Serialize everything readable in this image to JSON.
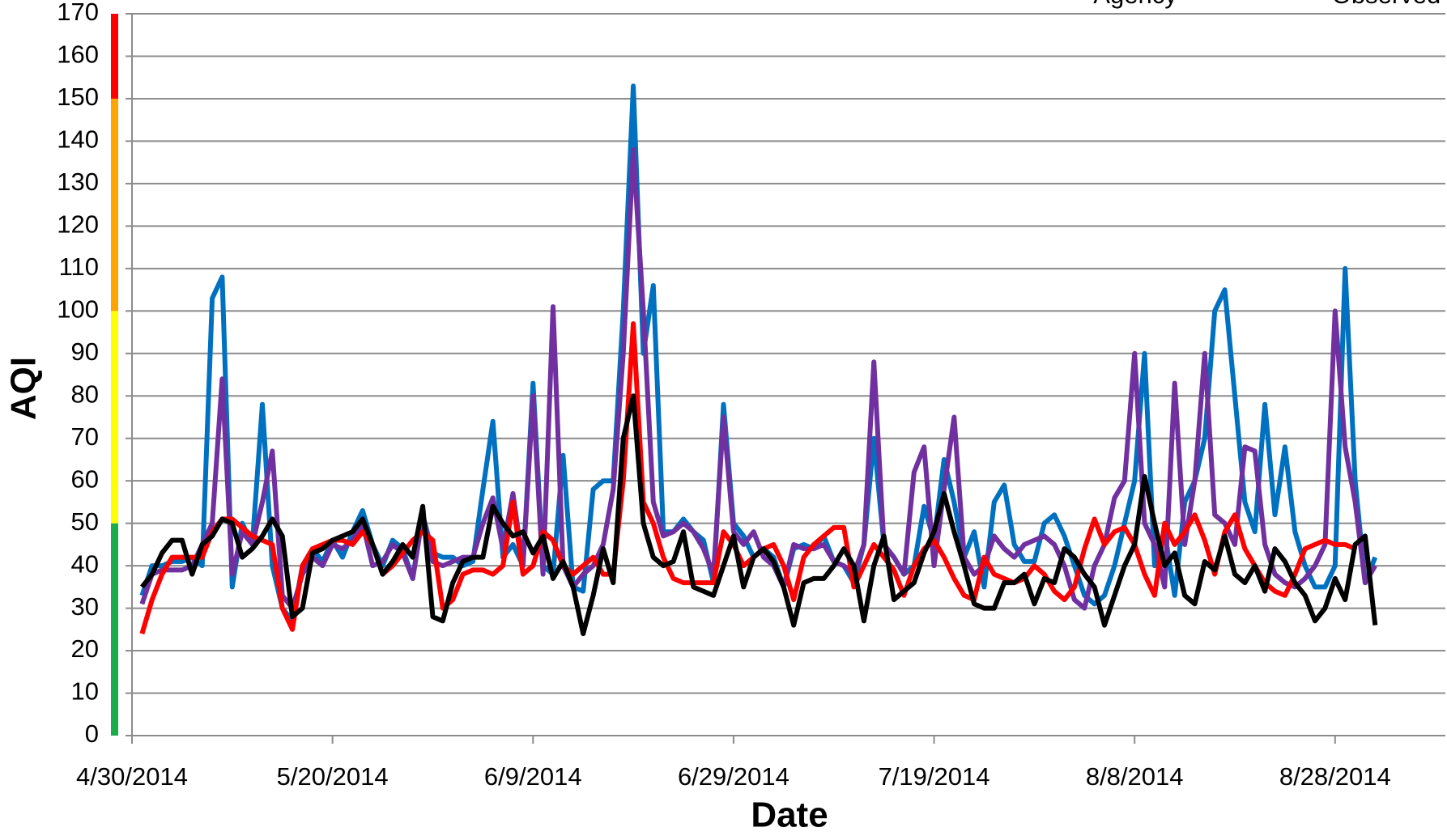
{
  "chart_data": {
    "type": "line",
    "x_label": "Date",
    "y_label": "AQI",
    "legend_labels": [
      "Agency",
      "Observed"
    ],
    "x": [
      "5/1/2014",
      "5/2/2014",
      "5/3/2014",
      "5/4/2014",
      "5/5/2014",
      "5/6/2014",
      "5/7/2014",
      "5/8/2014",
      "5/9/2014",
      "5/10/2014",
      "5/11/2014",
      "5/12/2014",
      "5/13/2014",
      "5/14/2014",
      "5/15/2014",
      "5/16/2014",
      "5/17/2014",
      "5/18/2014",
      "5/19/2014",
      "5/20/2014",
      "5/21/2014",
      "5/22/2014",
      "5/23/2014",
      "5/24/2014",
      "5/25/2014",
      "5/26/2014",
      "5/27/2014",
      "5/28/2014",
      "5/29/2014",
      "5/30/2014",
      "5/31/2014",
      "6/1/2014",
      "6/2/2014",
      "6/3/2014",
      "6/4/2014",
      "6/5/2014",
      "6/6/2014",
      "6/7/2014",
      "6/8/2014",
      "6/9/2014",
      "6/10/2014",
      "6/11/2014",
      "6/12/2014",
      "6/13/2014",
      "6/14/2014",
      "6/15/2014",
      "6/16/2014",
      "6/17/2014",
      "6/18/2014",
      "6/19/2014",
      "6/20/2014",
      "6/21/2014",
      "6/22/2014",
      "6/23/2014",
      "6/24/2014",
      "6/25/2014",
      "6/26/2014",
      "6/27/2014",
      "6/28/2014",
      "6/29/2014",
      "6/30/2014",
      "7/1/2014",
      "7/2/2014",
      "7/3/2014",
      "7/4/2014",
      "7/5/2014",
      "7/6/2014",
      "7/7/2014",
      "7/8/2014",
      "7/9/2014",
      "7/10/2014",
      "7/11/2014",
      "7/12/2014",
      "7/13/2014",
      "7/14/2014",
      "7/15/2014",
      "7/16/2014",
      "7/17/2014",
      "7/18/2014",
      "7/19/2014",
      "7/20/2014",
      "7/21/2014",
      "7/22/2014",
      "7/23/2014",
      "7/24/2014",
      "7/25/2014",
      "7/26/2014",
      "7/27/2014",
      "7/28/2014",
      "7/29/2014",
      "7/30/2014",
      "7/31/2014",
      "8/1/2014",
      "8/2/2014",
      "8/3/2014",
      "8/4/2014",
      "8/5/2014",
      "8/6/2014",
      "8/7/2014",
      "8/8/2014",
      "8/9/2014",
      "8/10/2014",
      "8/11/2014",
      "8/12/2014",
      "8/13/2014",
      "8/14/2014",
      "8/15/2014",
      "8/16/2014",
      "8/17/2014",
      "8/18/2014",
      "8/19/2014",
      "8/20/2014",
      "8/21/2014",
      "8/22/2014",
      "8/23/2014",
      "8/24/2014",
      "8/25/2014",
      "8/26/2014",
      "8/27/2014",
      "8/28/2014",
      "8/29/2014",
      "8/30/2014",
      "8/31/2014",
      "9/1/2014"
    ],
    "series": [
      {
        "color": "#0070c0",
        "values": [
          33,
          40,
          40,
          41,
          41,
          42,
          40,
          103,
          108,
          35,
          50,
          45,
          78,
          40,
          30,
          27,
          40,
          44,
          41,
          46,
          42,
          48,
          53,
          45,
          40,
          46,
          44,
          37,
          52,
          43,
          42,
          42,
          40,
          41,
          58,
          74,
          42,
          45,
          40,
          83,
          40,
          38,
          66,
          35,
          34,
          58,
          60,
          60,
          100,
          153,
          90,
          106,
          48,
          48,
          51,
          48,
          46,
          36,
          78,
          50,
          47,
          42,
          44,
          42,
          35,
          44,
          45,
          44,
          47,
          41,
          40,
          36,
          45,
          70,
          45,
          42,
          38,
          40,
          54,
          46,
          65,
          55,
          42,
          48,
          35,
          55,
          59,
          45,
          41,
          41,
          50,
          52,
          47,
          40,
          33,
          31,
          33,
          40,
          50,
          60,
          90,
          40,
          48,
          33,
          55,
          60,
          70,
          100,
          105,
          80,
          55,
          48,
          78,
          52,
          68,
          48,
          40,
          35,
          35,
          40,
          110,
          60,
          36,
          42
        ]
      },
      {
        "color": "#7030a0",
        "values": [
          31,
          38,
          39,
          39,
          39,
          40,
          45,
          50,
          84,
          38,
          48,
          45,
          55,
          67,
          33,
          30,
          38,
          42,
          40,
          45,
          44,
          46,
          50,
          40,
          41,
          45,
          43,
          37,
          52,
          41,
          40,
          41,
          42,
          42,
          50,
          56,
          44,
          57,
          40,
          80,
          38,
          101,
          40,
          35,
          38,
          40,
          45,
          58,
          90,
          138,
          100,
          55,
          47,
          48,
          50,
          48,
          44,
          38,
          75,
          48,
          45,
          48,
          42,
          40,
          35,
          45,
          44,
          44,
          45,
          41,
          40,
          38,
          45,
          88,
          45,
          42,
          38,
          62,
          68,
          40,
          58,
          75,
          42,
          38,
          40,
          47,
          44,
          42,
          45,
          46,
          47,
          45,
          40,
          32,
          30,
          40,
          45,
          56,
          60,
          90,
          50,
          45,
          35,
          83,
          45,
          60,
          90,
          52,
          50,
          45,
          68,
          67,
          45,
          38,
          36,
          35,
          37,
          40,
          45,
          100,
          68,
          55,
          36,
          40
        ]
      },
      {
        "color": "#ff0000",
        "values": [
          24,
          32,
          38,
          42,
          42,
          42,
          42,
          48,
          51,
          51,
          49,
          47,
          46,
          45,
          30,
          25,
          40,
          44,
          45,
          46,
          46,
          45,
          48,
          45,
          38,
          40,
          43,
          46,
          48,
          46,
          30,
          32,
          38,
          39,
          39,
          38,
          40,
          55,
          38,
          40,
          48,
          46,
          40,
          38,
          40,
          42,
          38,
          38,
          60,
          97,
          55,
          50,
          42,
          37,
          36,
          36,
          36,
          36,
          48,
          45,
          40,
          42,
          44,
          45,
          40,
          32,
          42,
          45,
          47,
          49,
          49,
          35,
          40,
          45,
          42,
          39,
          33,
          40,
          44,
          46,
          42,
          37,
          33,
          32,
          42,
          38,
          37,
          36,
          37,
          40,
          38,
          34,
          32,
          35,
          44,
          51,
          45,
          48,
          49,
          45,
          38,
          33,
          50,
          45,
          48,
          52,
          46,
          38,
          48,
          52,
          44,
          40,
          36,
          34,
          33,
          38,
          44,
          45,
          46,
          45,
          45,
          44,
          null,
          null
        ]
      },
      {
        "color": "#000000",
        "values": [
          35,
          38,
          43,
          46,
          46,
          38,
          45,
          47,
          51,
          50,
          42,
          44,
          47,
          51,
          47,
          28,
          30,
          43,
          44,
          46,
          47,
          48,
          51,
          45,
          38,
          41,
          45,
          42,
          54,
          28,
          27,
          36,
          41,
          42,
          42,
          54,
          50,
          47,
          48,
          43,
          47,
          37,
          41,
          35,
          24,
          33,
          44,
          36,
          70,
          80,
          50,
          42,
          40,
          41,
          48,
          35,
          34,
          33,
          40,
          47,
          35,
          42,
          44,
          41,
          35,
          26,
          36,
          37,
          37,
          40,
          44,
          40,
          27,
          40,
          47,
          32,
          34,
          36,
          43,
          48,
          57,
          48,
          40,
          31,
          30,
          30,
          36,
          36,
          38,
          31,
          37,
          36,
          44,
          42,
          38,
          35,
          26,
          33,
          40,
          45,
          61,
          50,
          40,
          43,
          33,
          31,
          41,
          39,
          47,
          38,
          36,
          40,
          34,
          44,
          41,
          36,
          33,
          27,
          30,
          37,
          32,
          45,
          47,
          26
        ]
      }
    ],
    "bands": [
      {
        "from": 0,
        "to": 50,
        "color": "#1aab4b"
      },
      {
        "from": 50,
        "to": 100,
        "color": "#ffff00"
      },
      {
        "from": 100,
        "to": 150,
        "color": "#ffa500"
      },
      {
        "from": 150,
        "to": 170,
        "color": "#ff0000"
      }
    ],
    "xlim": [
      "4/30/2014",
      "9/8/2014"
    ],
    "xticks": [
      "4/30/2014",
      "5/20/2014",
      "6/9/2014",
      "6/29/2014",
      "7/19/2014",
      "8/8/2014",
      "8/28/2014"
    ],
    "ylim": [
      0,
      170
    ],
    "yticks": [
      0,
      10,
      20,
      30,
      40,
      50,
      60,
      70,
      80,
      90,
      100,
      110,
      120,
      130,
      140,
      150,
      160,
      170
    ],
    "grid": true
  }
}
